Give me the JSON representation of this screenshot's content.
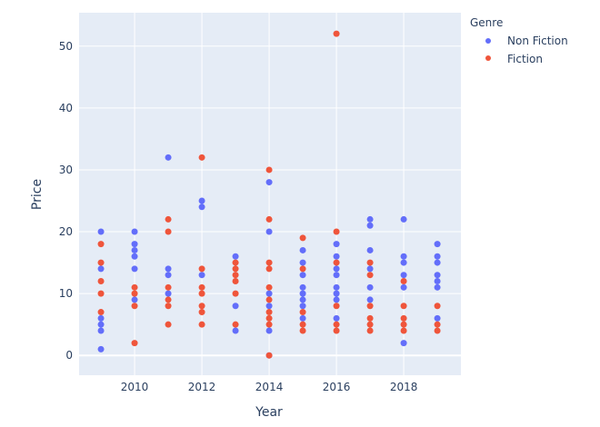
{
  "chart_data": {
    "type": "scatter",
    "title": "",
    "xlabel": "Year",
    "ylabel": "Price",
    "xlim": [
      2008.35,
      2019.7
    ],
    "ylim": [
      -3.2,
      55.4
    ],
    "xticks": [
      2010,
      2012,
      2014,
      2016,
      2018
    ],
    "yticks": [
      0,
      10,
      20,
      30,
      40,
      50
    ],
    "grid": true,
    "legend": {
      "title": "Genre",
      "placement": "right-top"
    },
    "series": [
      {
        "name": "Non Fiction",
        "color": "#636efa",
        "points": [
          [
            2009,
            20
          ],
          [
            2009,
            14
          ],
          [
            2009,
            6
          ],
          [
            2009,
            5
          ],
          [
            2009,
            4
          ],
          [
            2009,
            1
          ],
          [
            2010,
            20
          ],
          [
            2010,
            18
          ],
          [
            2010,
            17
          ],
          [
            2010,
            16
          ],
          [
            2010,
            14
          ],
          [
            2010,
            9
          ],
          [
            2011,
            32
          ],
          [
            2011,
            14
          ],
          [
            2011,
            13
          ],
          [
            2011,
            10
          ],
          [
            2012,
            25
          ],
          [
            2012,
            24
          ],
          [
            2012,
            13
          ],
          [
            2013,
            16
          ],
          [
            2013,
            8
          ],
          [
            2013,
            4
          ],
          [
            2014,
            28
          ],
          [
            2014,
            20
          ],
          [
            2014,
            10
          ],
          [
            2014,
            8
          ],
          [
            2014,
            4
          ],
          [
            2014,
            0
          ],
          [
            2015,
            17
          ],
          [
            2015,
            15
          ],
          [
            2015,
            13
          ],
          [
            2015,
            11
          ],
          [
            2015,
            10
          ],
          [
            2015,
            9
          ],
          [
            2015,
            8
          ],
          [
            2015,
            6
          ],
          [
            2016,
            18
          ],
          [
            2016,
            16
          ],
          [
            2016,
            14
          ],
          [
            2016,
            13
          ],
          [
            2016,
            11
          ],
          [
            2016,
            10
          ],
          [
            2016,
            9
          ],
          [
            2016,
            6
          ],
          [
            2017,
            22
          ],
          [
            2017,
            21
          ],
          [
            2017,
            17
          ],
          [
            2017,
            14
          ],
          [
            2017,
            11
          ],
          [
            2017,
            9
          ],
          [
            2018,
            22
          ],
          [
            2018,
            16
          ],
          [
            2018,
            15
          ],
          [
            2018,
            13
          ],
          [
            2018,
            11
          ],
          [
            2018,
            2
          ],
          [
            2019,
            18
          ],
          [
            2019,
            16
          ],
          [
            2019,
            15
          ],
          [
            2019,
            13
          ],
          [
            2019,
            12
          ],
          [
            2019,
            11
          ],
          [
            2019,
            6
          ]
        ]
      },
      {
        "name": "Fiction",
        "color": "#ef553b",
        "points": [
          [
            2009,
            18
          ],
          [
            2009,
            15
          ],
          [
            2009,
            12
          ],
          [
            2009,
            10
          ],
          [
            2009,
            7
          ],
          [
            2010,
            11
          ],
          [
            2010,
            10
          ],
          [
            2010,
            8
          ],
          [
            2010,
            2
          ],
          [
            2011,
            22
          ],
          [
            2011,
            20
          ],
          [
            2011,
            11
          ],
          [
            2011,
            9
          ],
          [
            2011,
            8
          ],
          [
            2011,
            5
          ],
          [
            2012,
            32
          ],
          [
            2012,
            14
          ],
          [
            2012,
            11
          ],
          [
            2012,
            10
          ],
          [
            2012,
            8
          ],
          [
            2012,
            7
          ],
          [
            2012,
            5
          ],
          [
            2013,
            15
          ],
          [
            2013,
            14
          ],
          [
            2013,
            13
          ],
          [
            2013,
            12
          ],
          [
            2013,
            10
          ],
          [
            2013,
            5
          ],
          [
            2014,
            30
          ],
          [
            2014,
            22
          ],
          [
            2014,
            15
          ],
          [
            2014,
            14
          ],
          [
            2014,
            11
          ],
          [
            2014,
            9
          ],
          [
            2014,
            7
          ],
          [
            2014,
            6
          ],
          [
            2014,
            5
          ],
          [
            2014,
            0
          ],
          [
            2015,
            19
          ],
          [
            2015,
            14
          ],
          [
            2015,
            7
          ],
          [
            2015,
            5
          ],
          [
            2015,
            4
          ],
          [
            2016,
            52
          ],
          [
            2016,
            20
          ],
          [
            2016,
            15
          ],
          [
            2016,
            8
          ],
          [
            2016,
            5
          ],
          [
            2016,
            4
          ],
          [
            2017,
            15
          ],
          [
            2017,
            13
          ],
          [
            2017,
            8
          ],
          [
            2017,
            6
          ],
          [
            2017,
            5
          ],
          [
            2017,
            4
          ],
          [
            2018,
            12
          ],
          [
            2018,
            8
          ],
          [
            2018,
            6
          ],
          [
            2018,
            5
          ],
          [
            2018,
            4
          ],
          [
            2019,
            8
          ],
          [
            2019,
            5
          ],
          [
            2019,
            4
          ]
        ]
      }
    ]
  }
}
